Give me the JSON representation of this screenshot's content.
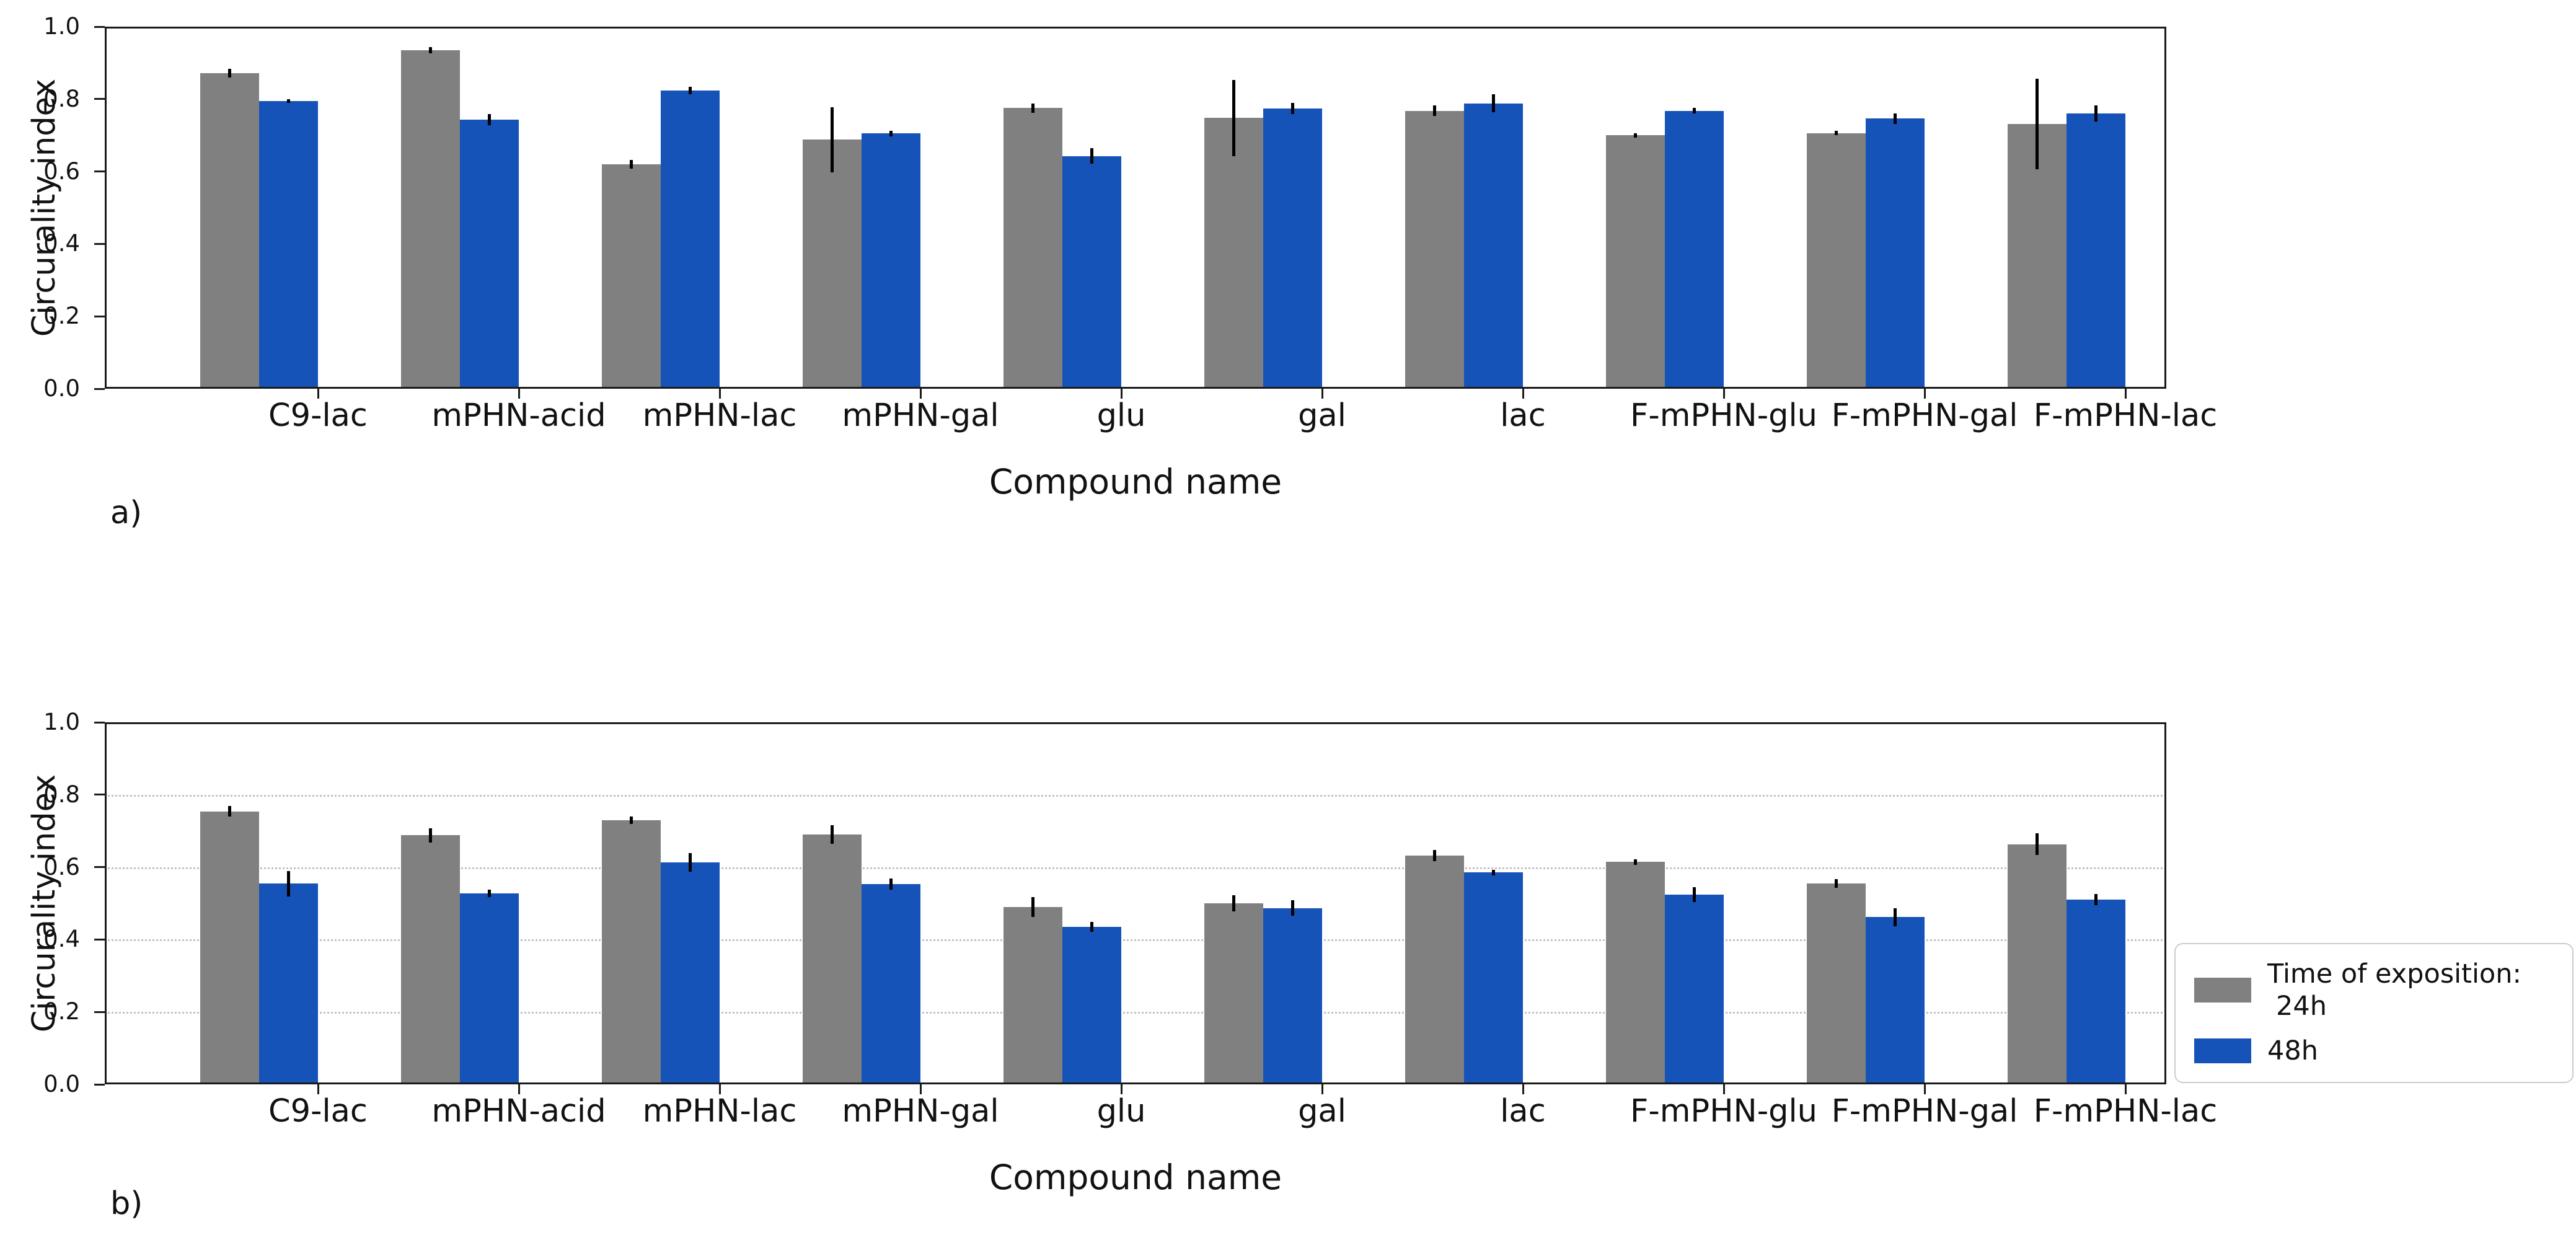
{
  "legend": {
    "title": "Time of exposition:",
    "items": [
      {
        "label": "24h",
        "color": "#808080"
      },
      {
        "label": "48h",
        "color": "#1553b8"
      }
    ]
  },
  "chart_data": [
    {
      "type": "bar",
      "panel_label": "a)",
      "title": "",
      "xlabel": "Compound name",
      "ylabel": "Circurality index",
      "ylim": [
        0.0,
        1.0
      ],
      "ytick_labels": [
        "0.0",
        "0.2",
        "0.4",
        "0.6",
        "0.8",
        "1.0"
      ],
      "grid": false,
      "legend_position": "none",
      "categories": [
        "C9-lac",
        "mPHN-acid",
        "mPHN-lac",
        "mPHN-gal",
        "glu",
        "gal",
        "lac",
        "F-mPHN-glu",
        "F-mPHN-gal",
        "F-mPHN-lac"
      ],
      "series": [
        {
          "name": "24h",
          "color": "#808080",
          "values": [
            0.872,
            0.935,
            0.62,
            0.688,
            0.775,
            0.748,
            0.768,
            0.7,
            0.706,
            0.732
          ],
          "errors": [
            0.012,
            0.008,
            0.012,
            0.09,
            0.013,
            0.105,
            0.015,
            0.006,
            0.006,
            0.125
          ]
        },
        {
          "name": "48h",
          "color": "#1553b8",
          "values": [
            0.794,
            0.743,
            0.824,
            0.705,
            0.643,
            0.774,
            0.788,
            0.768,
            0.746,
            0.76
          ],
          "errors": [
            0.005,
            0.015,
            0.01,
            0.008,
            0.022,
            0.015,
            0.025,
            0.008,
            0.015,
            0.022
          ]
        }
      ]
    },
    {
      "type": "bar",
      "panel_label": "b)",
      "title": "",
      "xlabel": "Compound name",
      "ylabel": "Circurality index",
      "ylim": [
        0.0,
        1.0
      ],
      "ytick_labels": [
        "0.0",
        "0.2",
        "0.4",
        "0.6",
        "0.8",
        "1.0"
      ],
      "grid": true,
      "legend_position": "right-outside",
      "categories": [
        "C9-lac",
        "mPHN-acid",
        "mPHN-lac",
        "mPHN-gal",
        "glu",
        "gal",
        "lac",
        "F-mPHN-glu",
        "F-mPHN-gal",
        "F-mPHN-lac"
      ],
      "series": [
        {
          "name": "24h",
          "color": "#808080",
          "values": [
            0.754,
            0.688,
            0.73,
            0.69,
            0.49,
            0.5,
            0.632,
            0.614,
            0.554,
            0.663
          ],
          "errors": [
            0.015,
            0.02,
            0.01,
            0.025,
            0.028,
            0.022,
            0.015,
            0.008,
            0.012,
            0.03
          ]
        },
        {
          "name": "48h",
          "color": "#1553b8",
          "values": [
            0.554,
            0.527,
            0.613,
            0.553,
            0.435,
            0.487,
            0.585,
            0.524,
            0.462,
            0.51
          ],
          "errors": [
            0.035,
            0.01,
            0.025,
            0.015,
            0.013,
            0.022,
            0.008,
            0.02,
            0.025,
            0.015
          ]
        }
      ]
    }
  ]
}
